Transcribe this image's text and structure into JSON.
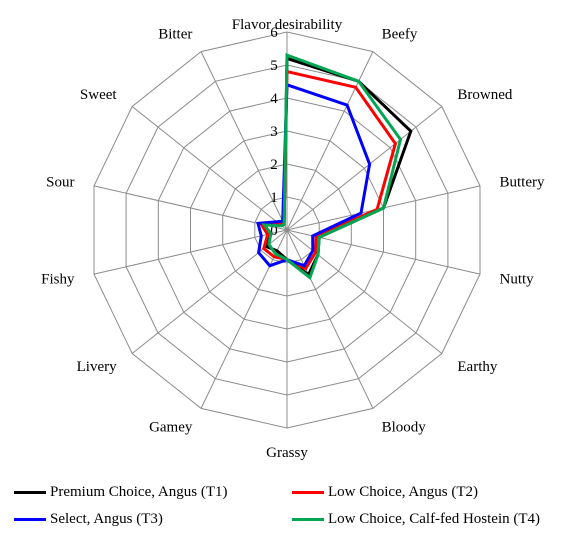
{
  "chart_data": {
    "type": "radar",
    "title": "",
    "categories": [
      "Flavor desirability",
      "Beefy",
      "Browned",
      "Buttery",
      "Nutty",
      "Earthy",
      "Bloody",
      "Grassy",
      "Gamey",
      "Livery",
      "Fishy",
      "Sour",
      "Sweet",
      "Bitter"
    ],
    "radial_ticks": [
      "0",
      "1",
      "2",
      "3",
      "4",
      "5",
      "6"
    ],
    "rlim": [
      0,
      6
    ],
    "grid": true,
    "legend_position": "bottom",
    "series": [
      {
        "name": "Premium Choice, Angus (T1)",
        "color": "#000000",
        "values": [
          5.2,
          5.0,
          4.8,
          3.0,
          1.0,
          1.2,
          1.5,
          0.9,
          0.7,
          0.8,
          0.6,
          0.8,
          0.3,
          0.2
        ]
      },
      {
        "name": "Low Choice, Angus (T2)",
        "color": "#ff0000",
        "values": [
          4.8,
          4.8,
          4.2,
          2.8,
          0.9,
          1.1,
          1.3,
          0.9,
          0.9,
          0.9,
          0.6,
          0.8,
          0.3,
          0.2
        ]
      },
      {
        "name": "Select, Angus (T3)",
        "color": "#0000ff",
        "values": [
          4.4,
          4.2,
          3.2,
          2.3,
          0.8,
          1.0,
          1.2,
          0.9,
          1.2,
          1.1,
          0.8,
          0.9,
          0.4,
          0.3
        ]
      },
      {
        "name": "Low Choice, Calf-fed Hostein (T4)",
        "color": "#00a651",
        "values": [
          5.3,
          5.0,
          4.4,
          3.0,
          1.0,
          1.2,
          1.6,
          0.9,
          0.8,
          0.7,
          0.5,
          0.7,
          0.2,
          0.2
        ]
      }
    ]
  }
}
